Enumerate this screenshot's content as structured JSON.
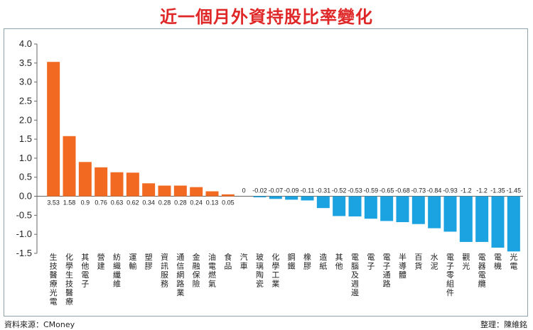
{
  "title": "近一個月外資持股比率變化",
  "footer": {
    "source": "資料來源：CMoney",
    "editor": "整理：陳維銘"
  },
  "colors": {
    "positive": "#f26a21",
    "negative": "#1aa3e0",
    "title": "#e02727"
  },
  "chart_data": {
    "type": "bar",
    "title": "近一個月外資持股比率變化",
    "xlabel": "",
    "ylabel": "",
    "ylim": [
      -1.5,
      4.0
    ],
    "yticks": [
      "4.0",
      "3.5",
      "3.0",
      "2.5",
      "2.0",
      "1.5",
      "1.0",
      "0.5",
      "0.0",
      "-0.5",
      "-1.0",
      "-1.5"
    ],
    "grid": false,
    "categories": [
      "生技醫療光電",
      "化學生技醫療",
      "其他電子",
      "營建",
      "紡織纖維",
      "運輸",
      "塑膠",
      "資訊服務",
      "通信網路業",
      "金融保險",
      "油電燃氣",
      "食品",
      "汽車",
      "玻璃陶瓷",
      "化學工業",
      "鋼鐵",
      "橡膠",
      "造紙",
      "其他",
      "電腦及週邊",
      "電子",
      "電子通路",
      "半導體",
      "百貨",
      "水泥",
      "電子零組件",
      "觀光",
      "電器電纜",
      "電機",
      "光電"
    ],
    "values": [
      3.53,
      1.58,
      0.9,
      0.76,
      0.63,
      0.62,
      0.34,
      0.28,
      0.28,
      0.24,
      0.13,
      0.05,
      0,
      -0.02,
      -0.07,
      -0.09,
      -0.11,
      -0.31,
      -0.52,
      -0.53,
      -0.59,
      -0.65,
      -0.68,
      -0.73,
      -0.84,
      -0.93,
      -1.2,
      -1.2,
      -1.35,
      -1.45
    ],
    "value_labels": [
      "3.53",
      "1.58",
      "0.9",
      "0.76",
      "0.63",
      "0.62",
      "0.34",
      "0.28",
      "0.28",
      "0.24",
      "0.13",
      "0.05",
      "0",
      "-0.02",
      "-0.07",
      "-0.09",
      "-0.11",
      "-0.31",
      "-0.52",
      "-0.53",
      "-0.59",
      "-0.65",
      "-0.68",
      "-0.73",
      "-0.84",
      "-0.93",
      "-1.2",
      "-1.2",
      "-1.35",
      "-1.45"
    ]
  }
}
